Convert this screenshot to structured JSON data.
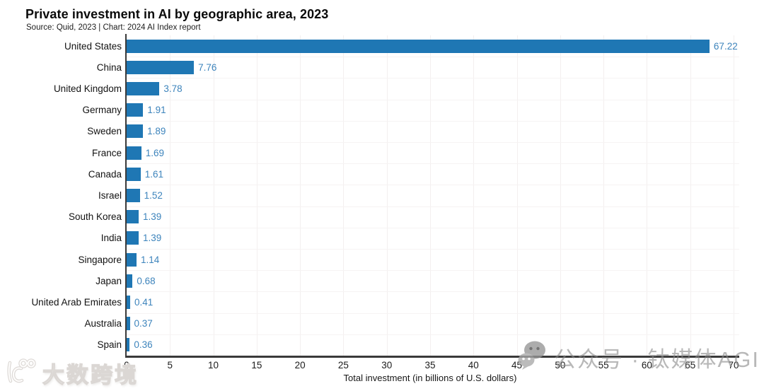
{
  "header": {
    "title": "Private investment in AI by geographic area, 2023",
    "subtitle": "Source: Quid, 2023 | Chart: 2024 AI Index report"
  },
  "chart_data": {
    "type": "bar",
    "orientation": "horizontal",
    "title": "Private investment in AI by geographic area, 2023",
    "categories": [
      "United States",
      "China",
      "United Kingdom",
      "Germany",
      "Sweden",
      "France",
      "Canada",
      "Israel",
      "South Korea",
      "India",
      "Singapore",
      "Japan",
      "United Arab Emirates",
      "Australia",
      "Spain"
    ],
    "values": [
      67.22,
      7.76,
      3.78,
      1.91,
      1.89,
      1.69,
      1.61,
      1.52,
      1.39,
      1.39,
      1.14,
      0.68,
      0.41,
      0.37,
      0.36
    ],
    "value_labels": [
      "67.22",
      "7.76",
      "3.78",
      "1.91",
      "1.89",
      "1.69",
      "1.61",
      "1.52",
      "1.39",
      "1.39",
      "1.14",
      "0.68",
      "0.41",
      "0.37",
      "0.36"
    ],
    "xlabel": "Total investment (in billions of U.S. dollars)",
    "ylabel": "",
    "xlim": [
      0,
      70
    ],
    "xticks": [
      0,
      5,
      10,
      15,
      20,
      25,
      30,
      35,
      40,
      45,
      50,
      55,
      60,
      65,
      70
    ],
    "grid": true,
    "legend_position": "none",
    "colors": {
      "bar": "#1f77b4",
      "value_label": "#3d84bc",
      "axis": "#3a3a3a",
      "tick_text": "#1c1c1c"
    }
  },
  "watermarks": {
    "bottom_left": {
      "icon": "dashu-kuajing-logo",
      "text": "大数跨境"
    },
    "bottom_right": {
      "icon": "wechat-icon",
      "text": "公众号 · 钛媒体AGI"
    }
  }
}
